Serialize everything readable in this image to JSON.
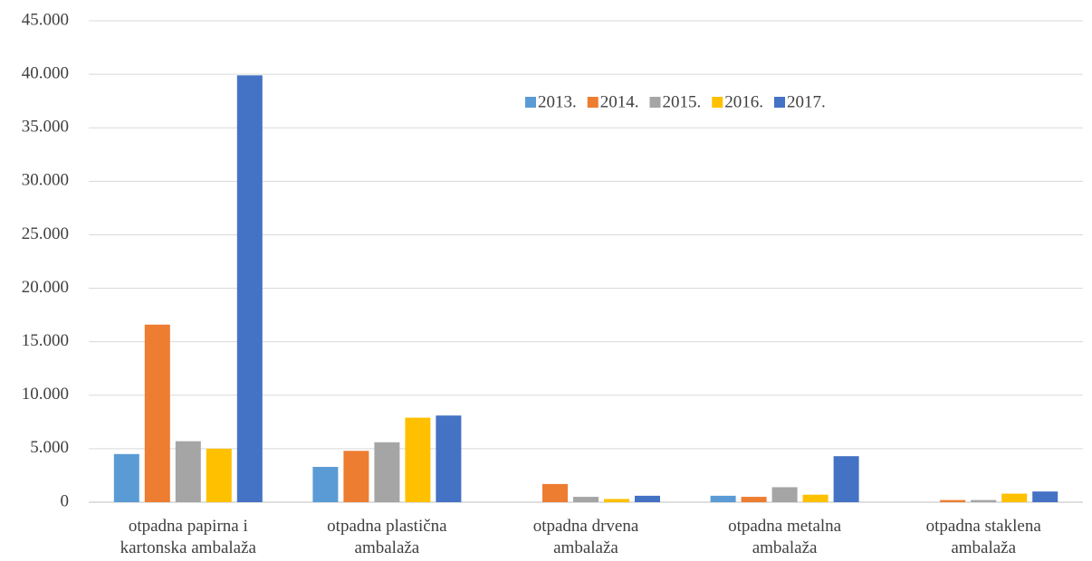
{
  "chart_data": {
    "type": "bar",
    "categories": [
      "otpadna papirna i kartonska ambalaža",
      "otpadna plastična ambalaža",
      "otpadna drvena ambalaža",
      "otpadna metalna ambalaža",
      "otpadna staklena ambalaža"
    ],
    "series": [
      {
        "name": "2013.",
        "color": "#5b9bd5",
        "values": [
          4500,
          3300,
          0,
          600,
          0
        ]
      },
      {
        "name": "2014.",
        "color": "#ed7d31",
        "values": [
          16600,
          4800,
          1700,
          500,
          200
        ]
      },
      {
        "name": "2015.",
        "color": "#a5a5a5",
        "values": [
          5700,
          5600,
          500,
          1400,
          200
        ]
      },
      {
        "name": "2016.",
        "color": "#ffc000",
        "values": [
          5000,
          7900,
          300,
          700,
          800
        ]
      },
      {
        "name": "2017.",
        "color": "#4472c4",
        "values": [
          39900,
          8100,
          600,
          4300,
          1000
        ]
      }
    ],
    "ylim": [
      0,
      45000
    ],
    "yticks": [
      0,
      {
        "value": 5000,
        "label": "5.000"
      },
      {
        "value": 10000,
        "label": "10.000"
      },
      {
        "value": 15000,
        "label": "15.000"
      },
      {
        "value": 20000,
        "label": "20.000"
      },
      {
        "value": 25000,
        "label": "25.000"
      },
      {
        "value": 30000,
        "label": "30.000"
      },
      {
        "value": 35000,
        "label": "35.000"
      },
      {
        "value": 40000,
        "label": "40.000"
      },
      {
        "value": 45000,
        "label": "45.000"
      }
    ],
    "grid": true
  }
}
